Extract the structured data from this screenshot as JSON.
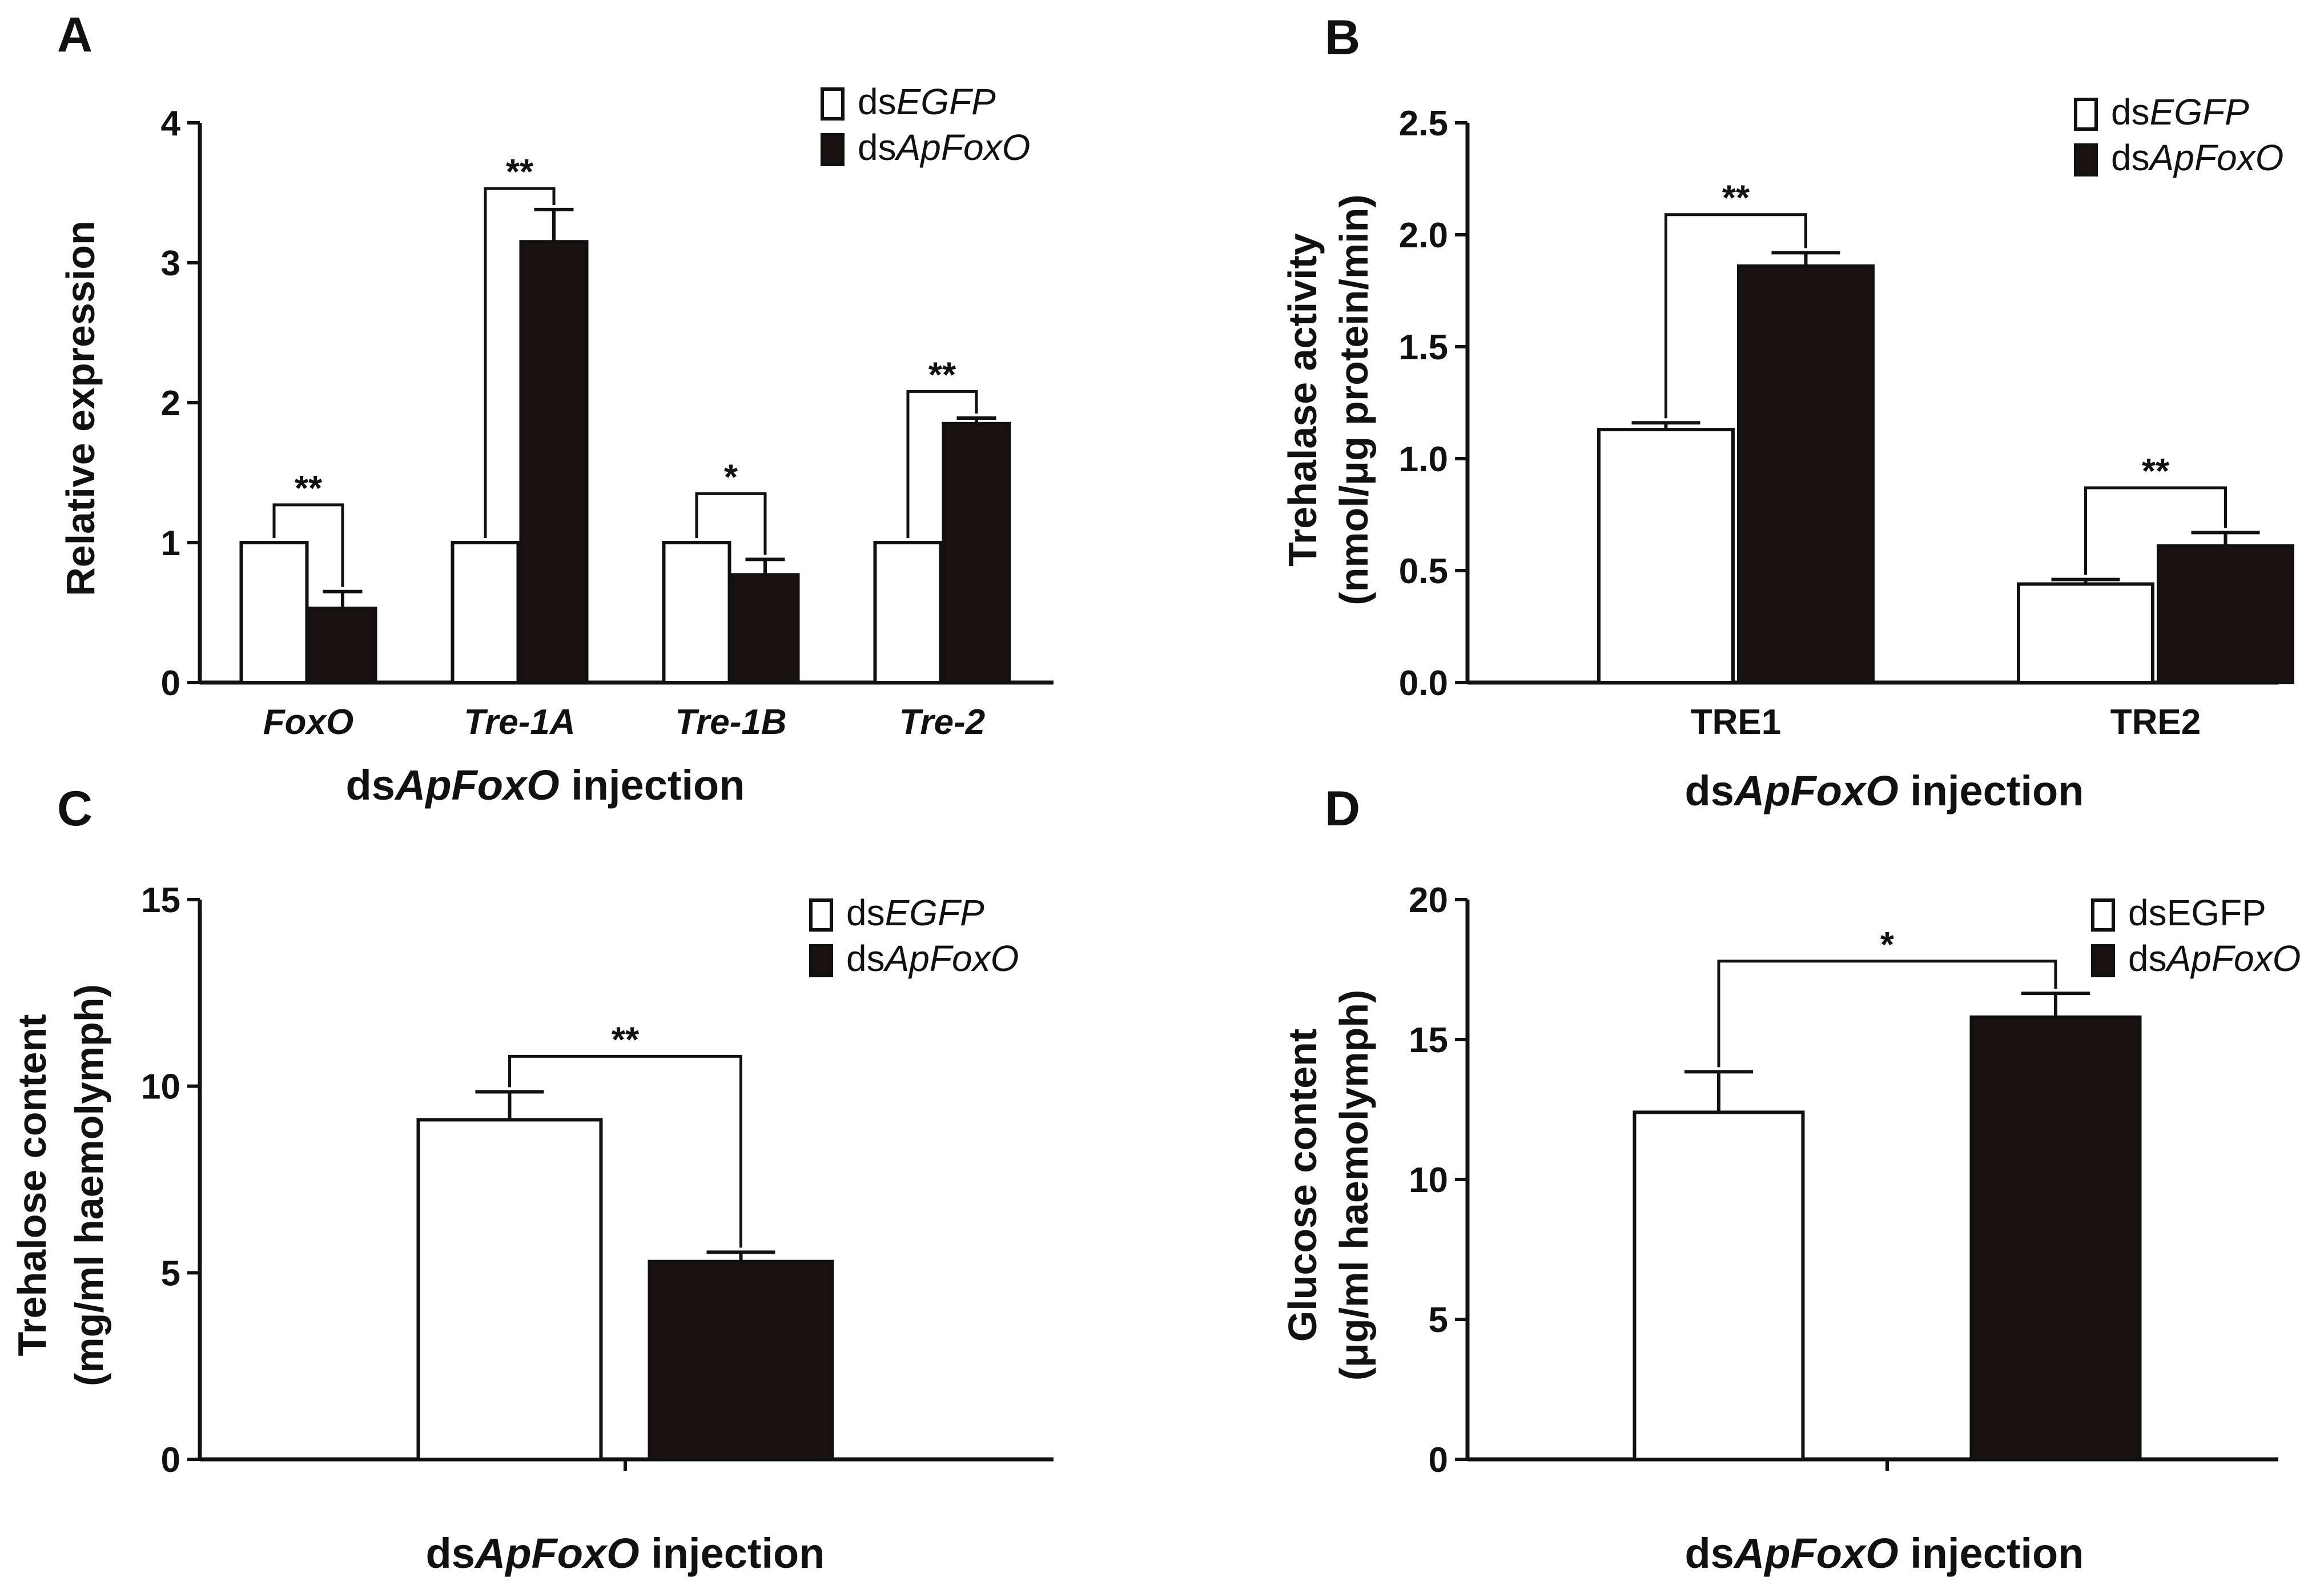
{
  "colors": {
    "control": "#ffffff",
    "treatment": "#1a1111",
    "stroke": "#111111"
  },
  "chart_data": [
    {
      "panel": "A",
      "type": "bar",
      "categories": [
        "FoxO",
        "Tre-1A",
        "Tre-1B",
        "Tre-2"
      ],
      "series": [
        {
          "name_prefix": "ds",
          "name_italic": "EGFP",
          "values": [
            1.0,
            1.0,
            1.0,
            1.0
          ],
          "errors": [
            0,
            0,
            0,
            0
          ]
        },
        {
          "name_prefix": "ds",
          "name_italic": "ApFoxO",
          "values": [
            0.53,
            3.15,
            0.77,
            1.85
          ],
          "errors": [
            0.12,
            0.23,
            0.11,
            0.04
          ]
        }
      ],
      "significance": [
        "**",
        "**",
        "*",
        "**"
      ],
      "bracket_tops": [
        1.27,
        3.53,
        1.35,
        2.08
      ],
      "ylabel": "Relative expression",
      "xlabel_prefix": "ds",
      "xlabel_italic": "ApFoxO",
      "xlabel_suffix": " injection",
      "ylim": [
        0,
        4
      ],
      "yticks": [
        "0",
        "1",
        "2",
        "3",
        "4"
      ],
      "legend_position": "top-right"
    },
    {
      "panel": "B",
      "type": "bar",
      "categories": [
        "TRE1",
        "TRE2"
      ],
      "series": [
        {
          "name_prefix": "ds",
          "name_italic": "EGFP",
          "values": [
            1.13,
            0.44
          ],
          "errors": [
            0.03,
            0.02
          ]
        },
        {
          "name_prefix": "ds",
          "name_italic": "ApFoxO",
          "values": [
            1.86,
            0.61
          ],
          "errors": [
            0.06,
            0.06
          ]
        }
      ],
      "significance": [
        "**",
        "**"
      ],
      "bracket_tops": [
        2.09,
        0.87
      ],
      "ylabel_line1": "Trehalase activity",
      "ylabel_line2": "(nmol/μg protein/min)",
      "xlabel_prefix": "ds",
      "xlabel_italic": "ApFoxO",
      "xlabel_suffix": " injection",
      "ylim": [
        0,
        2.5
      ],
      "yticks": [
        "0.0",
        "0.5",
        "1.0",
        "1.5",
        "2.0",
        "2.5"
      ],
      "legend_position": "top-right"
    },
    {
      "panel": "C",
      "type": "bar",
      "categories": [
        ""
      ],
      "series": [
        {
          "name_prefix": "ds",
          "name_italic": "EGFP",
          "values": [
            9.1
          ],
          "errors": [
            0.75
          ]
        },
        {
          "name_prefix": "ds",
          "name_italic": "ApFoxO",
          "values": [
            5.3
          ],
          "errors": [
            0.25
          ]
        }
      ],
      "significance": [
        "**"
      ],
      "bracket_tops": [
        10.8
      ],
      "ylabel_line1": "Trehalose content",
      "ylabel_line2": "(mg/ml haemolymph)",
      "xlabel_prefix": "ds",
      "xlabel_italic": "ApFoxO",
      "xlabel_suffix": " injection",
      "ylim": [
        0,
        15
      ],
      "yticks": [
        "0",
        "5",
        "10",
        "15"
      ],
      "legend_position": "top-right"
    },
    {
      "panel": "D",
      "type": "bar",
      "categories": [
        ""
      ],
      "series": [
        {
          "name_prefix": "dsEGFP",
          "name_italic": "",
          "values": [
            12.4
          ],
          "errors": [
            1.45
          ]
        },
        {
          "name_prefix": "ds",
          "name_italic": "ApFoxO",
          "values": [
            15.8
          ],
          "errors": [
            0.85
          ]
        }
      ],
      "significance": [
        "*"
      ],
      "bracket_tops": [
        17.8
      ],
      "ylabel_line1": "Glucose content",
      "ylabel_line2": "(μg/ml haemolymph)",
      "xlabel_prefix": "ds",
      "xlabel_italic": "ApFoxO",
      "xlabel_suffix": " injection",
      "ylim": [
        0,
        20
      ],
      "yticks": [
        "0",
        "5",
        "10",
        "15",
        "20"
      ],
      "legend_position": "top-right"
    }
  ]
}
